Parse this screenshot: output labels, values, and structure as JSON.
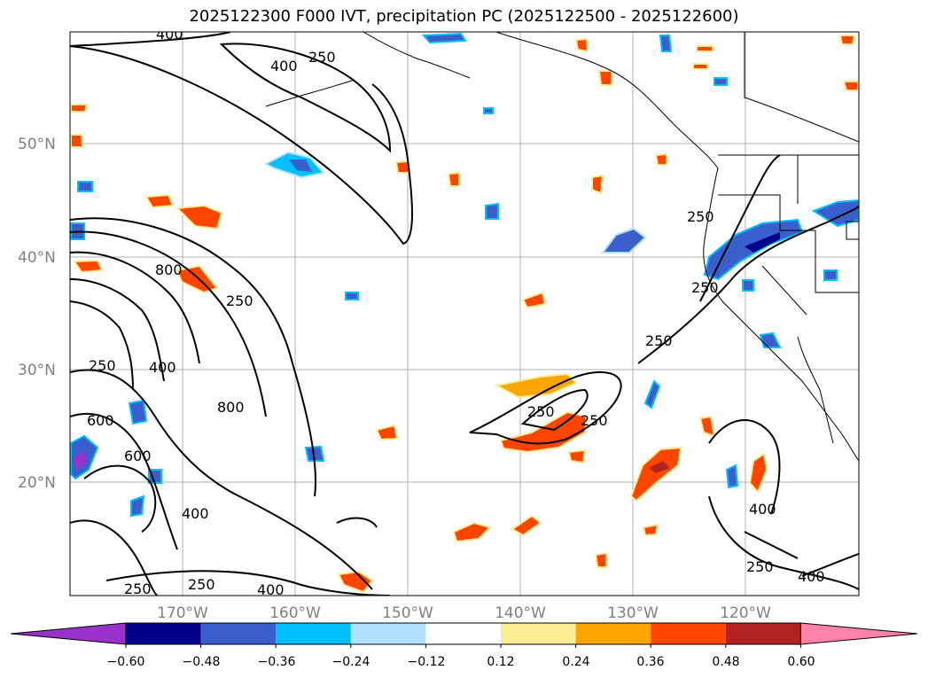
{
  "title": "2025122300 F000 IVT, precipitation PC (2025122500 - 2025122600)",
  "map": {
    "latitude_labels": [
      "50°N",
      "40°N",
      "30°N",
      "20°N"
    ],
    "longitude_labels": [
      "170°W",
      "160°W",
      "150°W",
      "140°W",
      "130°W",
      "120°W"
    ],
    "contour_labels": [
      "400",
      "250",
      "400",
      "800",
      "250",
      "250",
      "400",
      "800",
      "600",
      "600",
      "400",
      "250",
      "250",
      "400",
      "250",
      "250",
      "250",
      "250",
      "250",
      "400",
      "250",
      "400"
    ]
  },
  "colorbar": {
    "colors": [
      "#9932cc",
      "#00008b",
      "#3a5fcd",
      "#00bfff",
      "#b0e2ff",
      "#ffffff",
      "#fdec96",
      "#ffa500",
      "#ff4500",
      "#b22222",
      "#ff82ab"
    ],
    "tick_labels": [
      "−0.60",
      "−0.48",
      "−0.36",
      "−0.24",
      "−0.12",
      "0.12",
      "0.24",
      "0.36",
      "0.48",
      "0.60"
    ]
  },
  "colors": {
    "contour": "#000000",
    "grid": "#b0b0b0",
    "coast": "#000000"
  }
}
